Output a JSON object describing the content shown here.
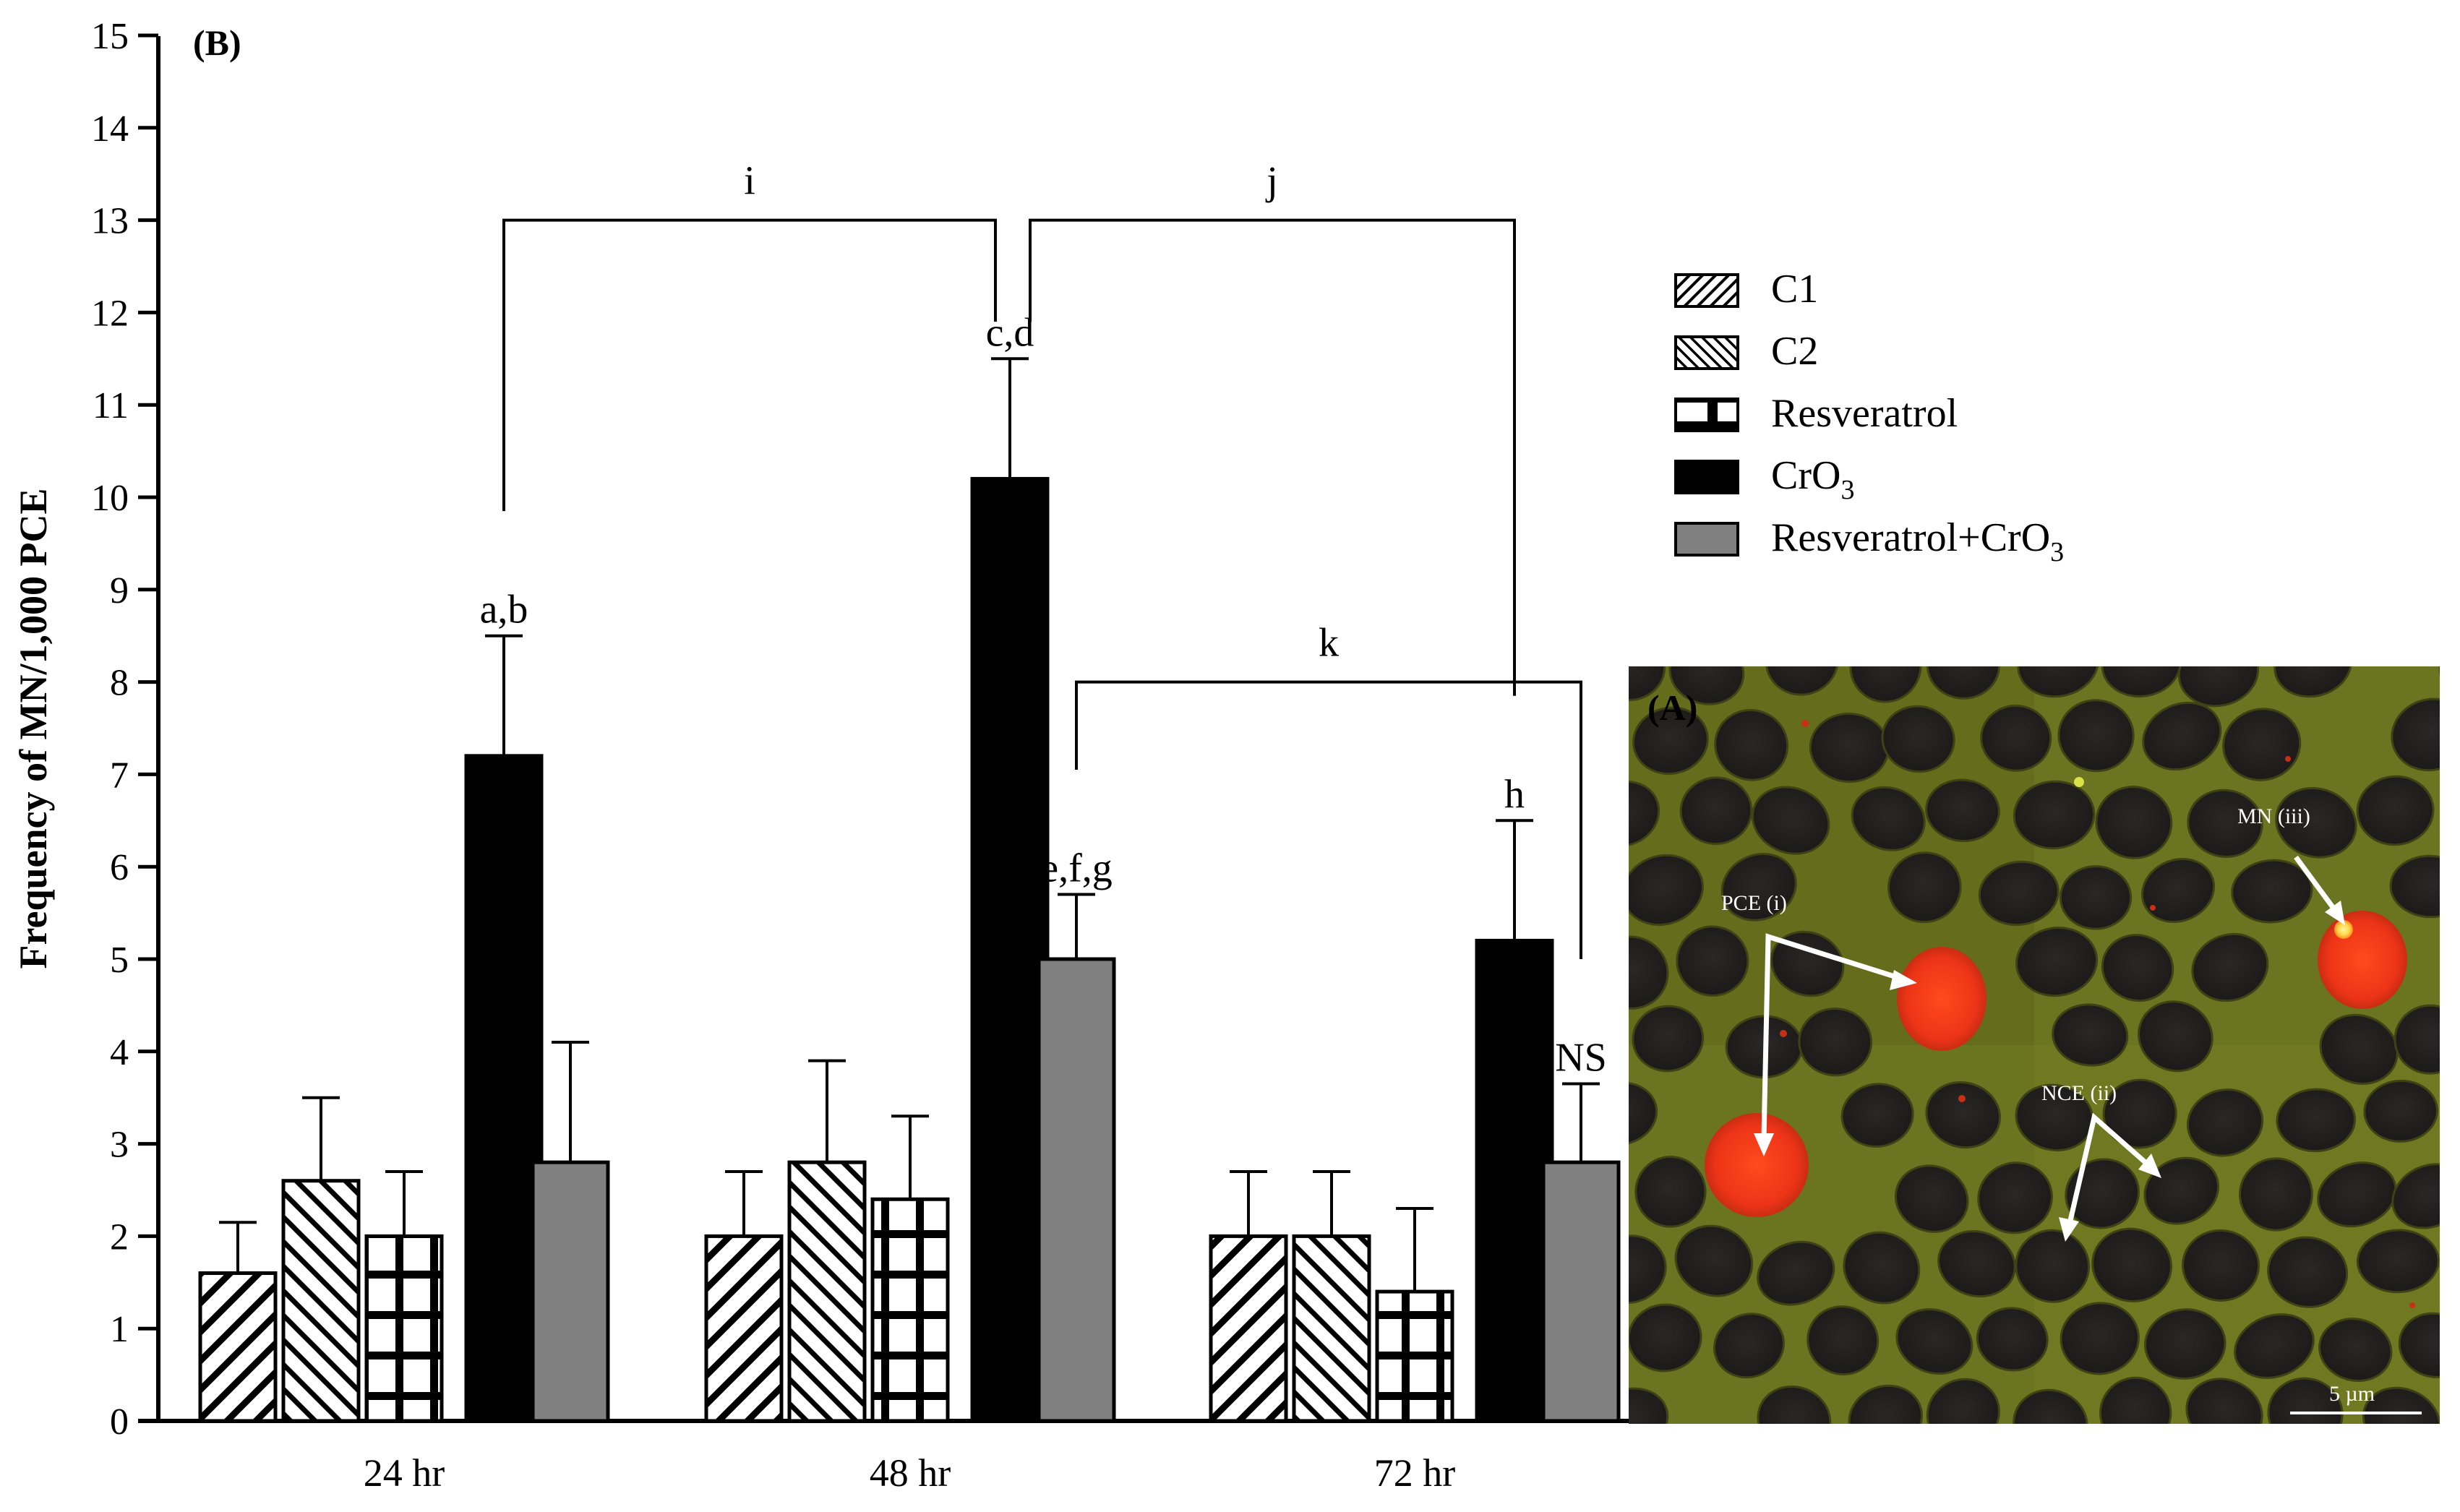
{
  "chart_data": {
    "type": "bar",
    "panel_label": "(B)",
    "ylabel": "Frequency of MN/1,000 PCE",
    "xlabel": "",
    "ylim": [
      0,
      15
    ],
    "yticks": [
      "0",
      "1",
      "2",
      "3",
      "4",
      "5",
      "6",
      "7",
      "8",
      "9",
      "10",
      "11",
      "12",
      "13",
      "14",
      "15"
    ],
    "categories": [
      "24 hr",
      "48 hr",
      "72 hr"
    ],
    "series": [
      {
        "name": "C1",
        "pattern": "diag-up",
        "values": [
          1.6,
          2.0,
          2.0
        ],
        "errors": [
          0.55,
          0.7,
          0.7
        ]
      },
      {
        "name": "C2",
        "pattern": "diag-down",
        "values": [
          2.6,
          2.8,
          2.0
        ],
        "errors": [
          0.9,
          1.1,
          0.7
        ]
      },
      {
        "name": "Resveratrol",
        "pattern": "grid",
        "values": [
          2.0,
          2.4,
          1.4
        ],
        "errors": [
          0.7,
          0.9,
          0.9
        ]
      },
      {
        "name": "CrO",
        "subscript": "3",
        "pattern": "black",
        "values": [
          7.2,
          10.2,
          5.2
        ],
        "errors": [
          1.3,
          1.3,
          1.3
        ]
      },
      {
        "name": "Resveratrol+CrO",
        "subscript": "3",
        "pattern": "gray",
        "values": [
          2.8,
          5.0,
          2.8
        ],
        "errors": [
          1.3,
          0.7,
          0.85
        ]
      }
    ],
    "bar_labels": [
      {
        "text": "a,b",
        "category": 0,
        "series": 3
      },
      {
        "text": "c,d",
        "category": 1,
        "series": 3
      },
      {
        "text": "e,f,g",
        "category": 1,
        "series": 4
      },
      {
        "text": "h",
        "category": 2,
        "series": 3
      },
      {
        "text": "NS",
        "category": 2,
        "series": 4
      }
    ],
    "brackets": [
      {
        "label": "i",
        "from": {
          "category": 0,
          "series": 3
        },
        "to": {
          "category": 1,
          "series": 3
        },
        "level": 13
      },
      {
        "label": "j",
        "from": {
          "category": 1,
          "series": 3
        },
        "to": {
          "category": 2,
          "series": 3
        },
        "level": 13
      },
      {
        "label": "k",
        "from": {
          "category": 1,
          "series": 4
        },
        "to": {
          "category": 2,
          "series": 4
        },
        "level": 8
      }
    ],
    "legend_position": "right"
  },
  "inset": {
    "panel_label": "(A)",
    "labels": [
      "PCE (i)",
      "NCE (ii)",
      "MN (iii)"
    ],
    "scale_bar": "5 µm"
  }
}
